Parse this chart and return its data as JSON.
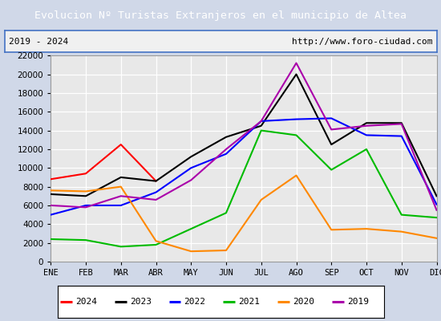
{
  "title": "Evolucion Nº Turistas Extranjeros en el municipio de Altea",
  "subtitle_left": "2019 - 2024",
  "subtitle_right": "http://www.foro-ciudad.com",
  "title_bg_color": "#4472c4",
  "title_text_color": "#ffffff",
  "months": [
    "ENE",
    "FEB",
    "MAR",
    "ABR",
    "MAY",
    "JUN",
    "JUL",
    "AGO",
    "SEP",
    "OCT",
    "NOV",
    "DIC"
  ],
  "ylim": [
    0,
    22000
  ],
  "yticks": [
    0,
    2000,
    4000,
    6000,
    8000,
    10000,
    12000,
    14000,
    16000,
    18000,
    20000,
    22000
  ],
  "grid_color": "#cccccc",
  "plot_bg": "#e8e8e8",
  "series": {
    "2024": {
      "color": "#ff0000",
      "data": [
        8800,
        9400,
        12500,
        8600,
        null,
        null,
        null,
        null,
        null,
        null,
        null,
        null
      ]
    },
    "2023": {
      "color": "#000000",
      "data": [
        7200,
        7000,
        9000,
        8600,
        11200,
        13300,
        14500,
        20000,
        12500,
        14800,
        14800,
        7000
      ]
    },
    "2022": {
      "color": "#0000ff",
      "data": [
        5000,
        6000,
        6000,
        7400,
        10000,
        11500,
        15000,
        15200,
        15300,
        13500,
        13400,
        6100
      ]
    },
    "2021": {
      "color": "#00bb00",
      "data": [
        2400,
        2300,
        1600,
        1800,
        3500,
        5200,
        14000,
        13500,
        9800,
        12000,
        5000,
        4700
      ]
    },
    "2020": {
      "color": "#ff8800",
      "data": [
        7600,
        7500,
        8000,
        2200,
        1100,
        1200,
        6600,
        9200,
        3400,
        3500,
        3200,
        2500
      ]
    },
    "2019": {
      "color": "#aa00aa",
      "data": [
        6000,
        5800,
        7000,
        6600,
        8700,
        12000,
        15000,
        21200,
        14100,
        14500,
        14700,
        5500
      ]
    }
  },
  "legend_order": [
    "2024",
    "2023",
    "2022",
    "2021",
    "2020",
    "2019"
  ]
}
